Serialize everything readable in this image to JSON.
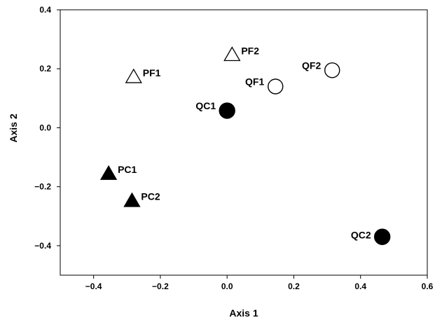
{
  "chart_data": {
    "type": "scatter",
    "xlabel": "Axis 1",
    "ylabel": "Axis 2",
    "xlim": [
      -0.5,
      0.6
    ],
    "ylim": [
      -0.5,
      0.4
    ],
    "xticks": [
      -0.4,
      -0.2,
      0.0,
      0.2,
      0.4,
      0.6
    ],
    "xtick_labels": [
      "−0.4",
      "−0.2",
      "0.0",
      "0.2",
      "0.4",
      "0.6"
    ],
    "yticks": [
      -0.4,
      -0.2,
      0.0,
      0.2,
      0.4
    ],
    "ytick_labels": [
      "−0.4",
      "−0.2",
      "0.0",
      "0.2",
      "0.4"
    ],
    "grid": false,
    "points": [
      {
        "label": "PF1",
        "x": -0.28,
        "y": 0.17,
        "marker": "triangle",
        "fill": "open"
      },
      {
        "label": "PF2",
        "x": 0.015,
        "y": 0.245,
        "marker": "triangle",
        "fill": "open"
      },
      {
        "label": "QF1",
        "x": 0.145,
        "y": 0.14,
        "marker": "circle",
        "fill": "open"
      },
      {
        "label": "QF2",
        "x": 0.315,
        "y": 0.195,
        "marker": "circle",
        "fill": "open"
      },
      {
        "label": "QC1",
        "x": 0.0,
        "y": 0.058,
        "marker": "circle",
        "fill": "filled"
      },
      {
        "label": "QC2",
        "x": 0.465,
        "y": -0.37,
        "marker": "circle",
        "fill": "filled"
      },
      {
        "label": "PC1",
        "x": -0.355,
        "y": -0.158,
        "marker": "triangle",
        "fill": "filled"
      },
      {
        "label": "PC2",
        "x": -0.285,
        "y": -0.25,
        "marker": "triangle",
        "fill": "filled"
      }
    ],
    "colors": {
      "marker": "#000000",
      "open_fill": "#ffffff",
      "axis": "#000000"
    }
  }
}
